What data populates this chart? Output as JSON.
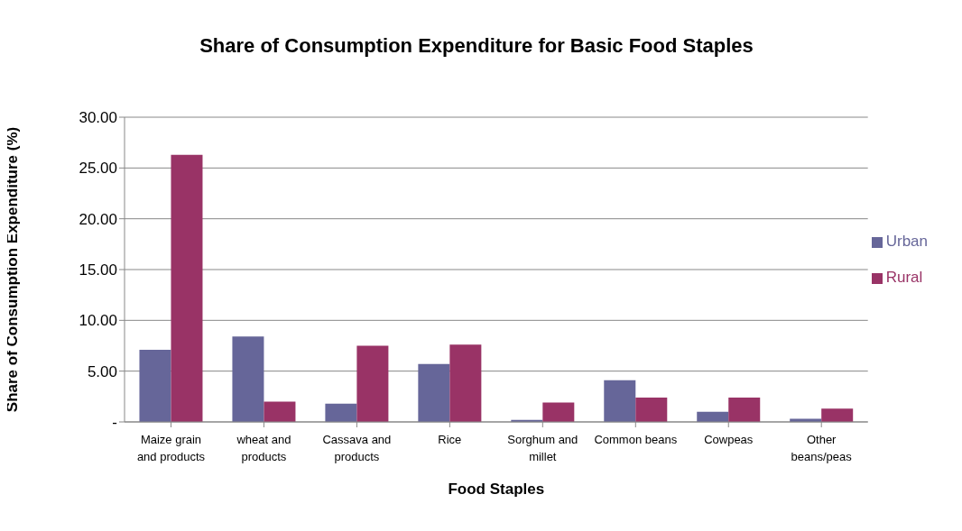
{
  "chart_data": {
    "type": "bar",
    "title": "Share of Consumption Expenditure for Basic Food Staples",
    "xlabel": "Food Staples",
    "ylabel": "Share of Consumption Expenditure (%)",
    "categories": [
      "Maize grain and products",
      "wheat and products",
      "Cassava and products",
      "Rice",
      "Sorghum and millet",
      "Common beans",
      "Cowpeas",
      "Other beans/peas"
    ],
    "series": [
      {
        "name": "Urban",
        "color": "#666699",
        "values": [
          7.1,
          8.4,
          1.8,
          5.7,
          0.2,
          4.1,
          1.0,
          0.3
        ]
      },
      {
        "name": "Rural",
        "color": "#993366",
        "values": [
          26.3,
          2.0,
          7.5,
          7.6,
          1.9,
          2.4,
          2.4,
          1.3
        ]
      }
    ],
    "ylim": [
      0,
      30
    ],
    "yticks": [
      {
        "value": 0,
        "label": "-"
      },
      {
        "value": 5,
        "label": "5.00"
      },
      {
        "value": 10,
        "label": "10.00"
      },
      {
        "value": 15,
        "label": "15.00"
      },
      {
        "value": 20,
        "label": "20.00"
      },
      {
        "value": 25,
        "label": "25.00"
      },
      {
        "value": 30,
        "label": "30.00"
      }
    ],
    "grid": "y",
    "legend": "right"
  }
}
